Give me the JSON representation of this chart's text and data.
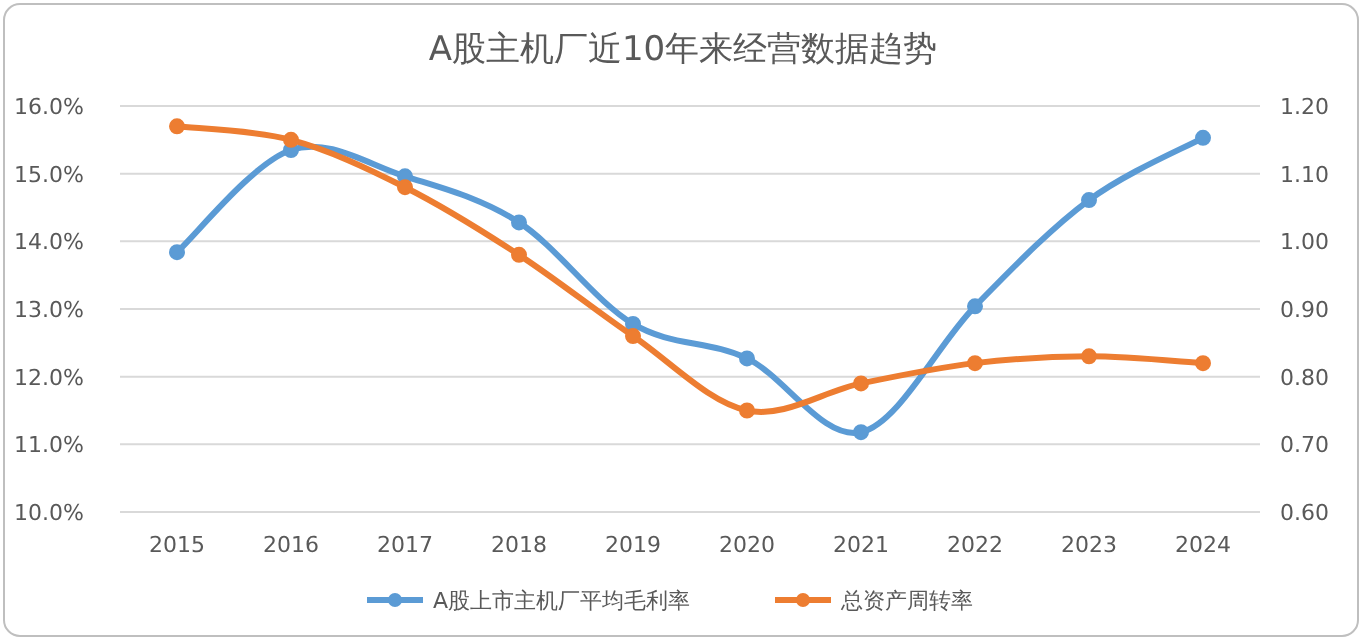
{
  "chart_data": {
    "type": "line",
    "title": "A股主机厂近10年来经营数据趋势",
    "categories": [
      "2015",
      "2016",
      "2017",
      "2018",
      "2019",
      "2020",
      "2021",
      "2022",
      "2023",
      "2024"
    ],
    "series": [
      {
        "name": "A股上市主机厂平均毛利率",
        "color": "#5b9bd5",
        "values": [
          13.84,
          15.35,
          14.96,
          14.28,
          12.78,
          12.27,
          11.18,
          13.04,
          14.61,
          15.53
        ]
      },
      {
        "name": "总资产周转率",
        "color": "#ed7d31",
        "axis": "y2",
        "values": [
          1.17,
          1.15,
          1.08,
          0.98,
          0.86,
          0.75,
          0.79,
          0.82,
          0.83,
          0.82
        ]
      }
    ],
    "ylim": [
      10,
      16
    ],
    "yticks": [
      {
        "value": 10,
        "label": "10.0%"
      },
      {
        "value": 11,
        "label": "11.0%"
      },
      {
        "value": 12,
        "label": "12.0%"
      },
      {
        "value": 13,
        "label": "13.0%"
      },
      {
        "value": 14,
        "label": "14.0%"
      },
      {
        "value": 15,
        "label": "15.0%"
      },
      {
        "value": 16,
        "label": "16.0%"
      }
    ],
    "y2lim": [
      0.6,
      1.2
    ],
    "y2ticks": [
      {
        "value": 0.6,
        "label": "0.60"
      },
      {
        "value": 0.7,
        "label": "0.70"
      },
      {
        "value": 0.8,
        "label": "0.80"
      },
      {
        "value": 0.9,
        "label": "0.90"
      },
      {
        "value": 1.0,
        "label": "1.00"
      },
      {
        "value": 1.1,
        "label": "1.10"
      },
      {
        "value": 1.2,
        "label": "1.20"
      }
    ],
    "grid": "y",
    "legend": "bottom",
    "marker": "circle",
    "line_style": "solid"
  }
}
